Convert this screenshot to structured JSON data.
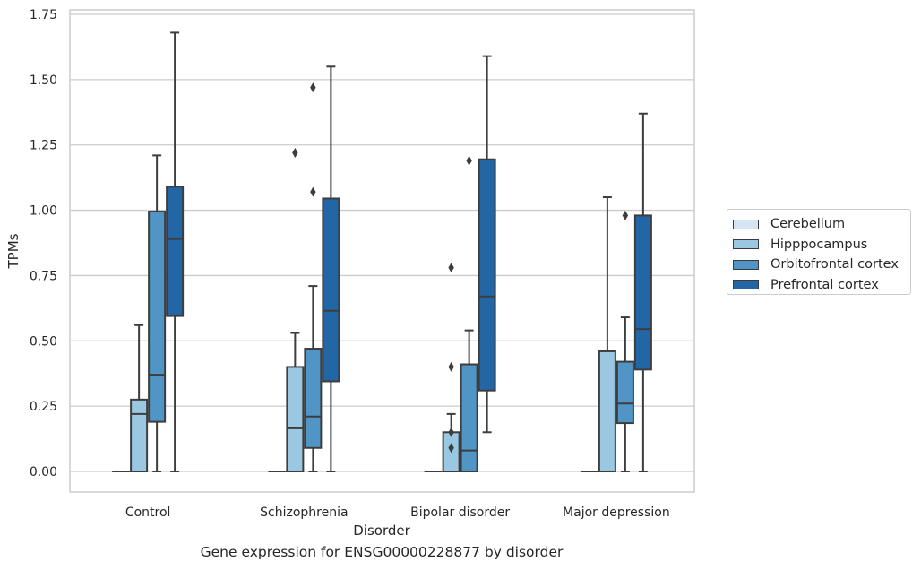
{
  "chart_data": {
    "type": "box",
    "caption": "Gene expression for ENSG00000228877 by disorder",
    "xlabel": "Disorder",
    "ylabel": "TPMs",
    "ylim": [
      -0.08,
      1.77
    ],
    "yticks": [
      "0.00",
      "0.25",
      "0.50",
      "0.75",
      "1.00",
      "1.25",
      "1.50",
      "1.75"
    ],
    "grid": true,
    "legend_position": "right",
    "categories": [
      "Control",
      "Schizophrenia",
      "Bipolar disorder",
      "Major depression"
    ],
    "series": [
      {
        "name": "Cerebellum",
        "color": "#d6e5f3",
        "boxes": [
          {
            "min": 0,
            "q1": 0,
            "median": 0,
            "q3": 0,
            "max": 0,
            "outliers": []
          },
          {
            "min": 0,
            "q1": 0,
            "median": 0,
            "q3": 0,
            "max": 0,
            "outliers": []
          },
          {
            "min": 0,
            "q1": 0,
            "median": 0,
            "q3": 0,
            "max": 0,
            "outliers": []
          },
          {
            "min": 0,
            "q1": 0,
            "median": 0,
            "q3": 0,
            "max": 0,
            "outliers": []
          }
        ]
      },
      {
        "name": "Hipppocampus",
        "color": "#9ac7e1",
        "boxes": [
          {
            "min": 0,
            "q1": 0,
            "median": 0.22,
            "q3": 0.275,
            "max": 0.56,
            "outliers": []
          },
          {
            "min": 0,
            "q1": 0,
            "median": 0.165,
            "q3": 0.4,
            "max": 0.53,
            "outliers": [
              1.22
            ]
          },
          {
            "min": 0,
            "q1": 0,
            "median": 0,
            "q3": 0.15,
            "max": 0.22,
            "outliers": [
              0.09,
              0.15,
              0.4,
              0.78
            ]
          },
          {
            "min": 0,
            "q1": 0,
            "median": 0,
            "q3": 0.46,
            "max": 1.05,
            "outliers": []
          }
        ]
      },
      {
        "name": "Orbitofrontal cortex",
        "color": "#5095c6",
        "boxes": [
          {
            "min": 0,
            "q1": 0.19,
            "median": 0.37,
            "q3": 0.995,
            "max": 1.21,
            "outliers": []
          },
          {
            "min": 0,
            "q1": 0.09,
            "median": 0.21,
            "q3": 0.47,
            "max": 0.71,
            "outliers": [
              1.07,
              1.47
            ]
          },
          {
            "min": 0,
            "q1": 0,
            "median": 0.08,
            "q3": 0.41,
            "max": 0.54,
            "outliers": [
              1.19
            ]
          },
          {
            "min": 0,
            "q1": 0.185,
            "median": 0.26,
            "q3": 0.42,
            "max": 0.59,
            "outliers": [
              0.98
            ]
          }
        ]
      },
      {
        "name": "Prefrontal cortex",
        "color": "#2366a5",
        "boxes": [
          {
            "min": 0,
            "q1": 0.595,
            "median": 0.89,
            "q3": 1.09,
            "max": 1.68,
            "outliers": []
          },
          {
            "min": 0,
            "q1": 0.345,
            "median": 0.615,
            "q3": 1.045,
            "max": 1.55,
            "outliers": []
          },
          {
            "min": 0.15,
            "q1": 0.31,
            "median": 0.67,
            "q3": 1.195,
            "max": 1.59,
            "outliers": []
          },
          {
            "min": 0,
            "q1": 0.39,
            "median": 0.545,
            "q3": 0.98,
            "max": 1.37,
            "outliers": []
          }
        ]
      }
    ]
  }
}
